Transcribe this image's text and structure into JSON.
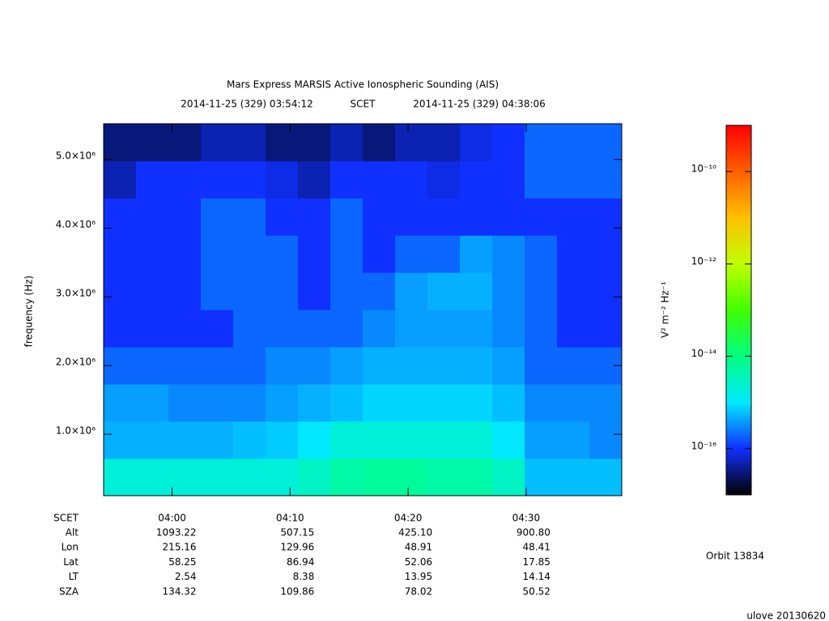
{
  "chart_data": {
    "type": "heatmap",
    "title": "Mars Express MARSIS Active Ionospheric Sounding (AIS)",
    "start_time": "2014-11-25 (329) 03:54:12",
    "time_system": "SCET",
    "end_time": "2014-11-25 (329) 04:38:06",
    "y_label": "frequency (Hz)",
    "xlim": [
      234.2,
      278.1
    ],
    "xticks": [
      {
        "value": 240,
        "label": "04:00"
      },
      {
        "value": 250,
        "label": "04:10"
      },
      {
        "value": 260,
        "label": "04:20"
      },
      {
        "value": 270,
        "label": "04:30"
      }
    ],
    "ylim": [
      106000,
      5520000
    ],
    "yticks": [
      {
        "value": 1000000,
        "label": "1.0×10⁶"
      },
      {
        "value": 2000000,
        "label": "2.0×10⁶"
      },
      {
        "value": 3000000,
        "label": "3.0×10⁶"
      },
      {
        "value": 4000000,
        "label": "4.0×10⁶"
      },
      {
        "value": 5000000,
        "label": "5.0×10⁶"
      }
    ],
    "colorbar_label": "V² m⁻² Hz⁻¹",
    "log_color_scale": true,
    "zlim": [
      1e-17,
      1e-09
    ],
    "zticks": [
      {
        "value": 1e-16,
        "label": "10⁻¹⁶"
      },
      {
        "value": 1e-14,
        "label": "10⁻¹⁴"
      },
      {
        "value": 1e-12,
        "label": "10⁻¹²"
      },
      {
        "value": 1e-10,
        "label": "10⁻¹⁰"
      }
    ],
    "colorscale": [
      "#000000",
      "#1030ff",
      "#00e8ff",
      "#00ff80",
      "#40ff00",
      "#c0ff00",
      "#ffc000",
      "#ff6000",
      "#ff0000"
    ],
    "z": [
      [
        2e-15,
        2e-15,
        2e-15,
        2e-15,
        2e-15,
        2e-15,
        3e-15,
        5e-15,
        6e-15,
        6e-15,
        5e-15,
        5e-15,
        3e-15,
        6e-16,
        6e-16,
        6e-16
      ],
      [
        5e-16,
        5e-16,
        5e-16,
        5e-16,
        6e-16,
        7e-16,
        1e-15,
        2e-15,
        2e-15,
        2e-15,
        2e-15,
        2e-15,
        1e-15,
        4e-16,
        4e-16,
        3e-16
      ],
      [
        4e-16,
        4e-16,
        3e-16,
        3e-16,
        3e-16,
        4e-16,
        5e-16,
        6e-16,
        8e-16,
        8e-16,
        8e-16,
        8e-16,
        6e-16,
        3e-16,
        3e-16,
        3e-16
      ],
      [
        2e-16,
        2e-16,
        2e-16,
        2e-16,
        2e-16,
        3e-16,
        3e-16,
        4e-16,
        5e-16,
        5e-16,
        5e-16,
        5e-16,
        4e-16,
        2e-16,
        2e-16,
        2e-16
      ],
      [
        1e-16,
        1e-16,
        1e-16,
        1e-16,
        2e-16,
        2e-16,
        2e-16,
        2e-16,
        3e-16,
        4e-16,
        4e-16,
        4e-16,
        3e-16,
        2e-16,
        1e-16,
        1e-16
      ],
      [
        1e-16,
        1e-16,
        1e-16,
        2e-16,
        2e-16,
        2e-16,
        1e-16,
        2e-16,
        2e-16,
        4e-16,
        5e-16,
        5e-16,
        3e-16,
        2e-16,
        1e-16,
        1e-16
      ],
      [
        1e-16,
        1e-16,
        1e-16,
        2e-16,
        2e-16,
        2e-16,
        1e-16,
        2e-16,
        1e-16,
        2e-16,
        2e-16,
        4e-16,
        3e-16,
        2e-16,
        1e-16,
        1e-16
      ],
      [
        1e-16,
        1e-16,
        1e-16,
        2e-16,
        2e-16,
        1e-16,
        1e-16,
        2e-16,
        1e-16,
        1e-16,
        1e-16,
        1e-16,
        1e-16,
        1e-16,
        1e-16,
        1e-16
      ],
      [
        5e-17,
        1e-16,
        1e-16,
        1e-16,
        1e-16,
        8e-17,
        5e-17,
        1e-16,
        1e-16,
        1e-16,
        8e-17,
        1e-16,
        1e-16,
        2e-16,
        2e-16,
        2e-16
      ],
      [
        3e-17,
        3e-17,
        3e-17,
        5e-17,
        5e-17,
        3e-17,
        3e-17,
        5e-17,
        3e-17,
        5e-17,
        5e-17,
        8e-17,
        1e-16,
        2e-16,
        2e-16,
        2e-16
      ]
    ],
    "row_label": "SCET",
    "ephemeris": [
      {
        "label": "Alt",
        "values": [
          "1093.22",
          "507.15",
          "425.10",
          "900.80"
        ]
      },
      {
        "label": "Lon",
        "values": [
          "215.16",
          "129.96",
          "48.91",
          "48.41"
        ]
      },
      {
        "label": "Lat",
        "values": [
          "58.25",
          "86.94",
          "52.06",
          "17.85"
        ]
      },
      {
        "label": "LT",
        "values": [
          "2.54",
          "8.38",
          "13.95",
          "14.14"
        ]
      },
      {
        "label": "SZA",
        "values": [
          "134.32",
          "109.86",
          "78.02",
          "50.52"
        ]
      }
    ],
    "orbit": "Orbit 13834",
    "version": "ulove 20130620"
  }
}
